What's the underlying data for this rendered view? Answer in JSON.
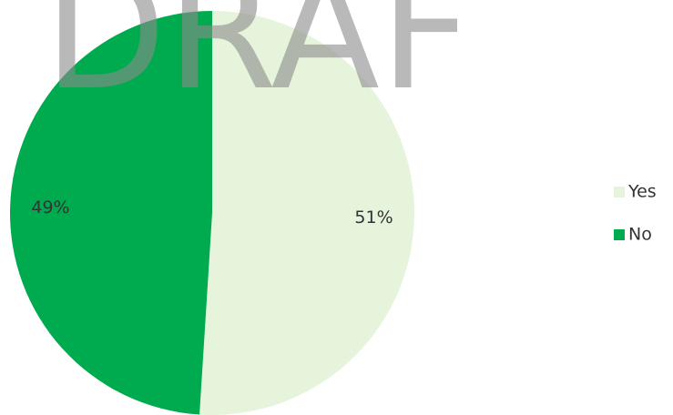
{
  "chart_data": {
    "type": "pie",
    "watermark": "DRAF",
    "categories": [
      "Yes",
      "No"
    ],
    "values": [
      51,
      49
    ],
    "value_labels": [
      "51%",
      "49%"
    ],
    "colors": [
      "#e6f4dc",
      "#00aa4f"
    ],
    "legend": "right"
  }
}
